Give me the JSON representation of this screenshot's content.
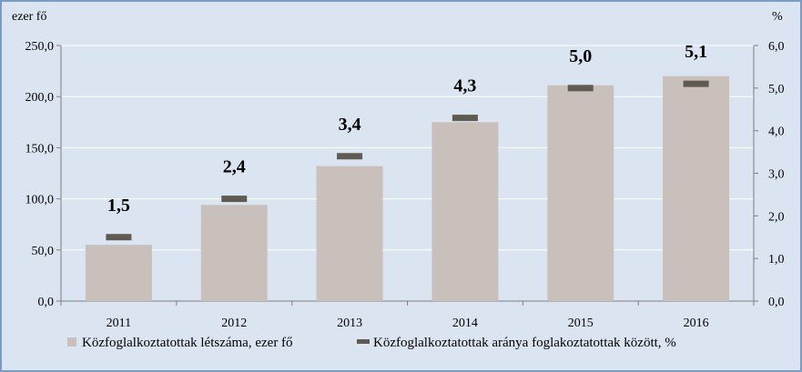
{
  "chart_data": {
    "type": "bar",
    "categories": [
      "2011",
      "2012",
      "2013",
      "2014",
      "2015",
      "2016"
    ],
    "series": [
      {
        "name": "Közfoglalkoztatottak létszáma, ezer fő",
        "kind": "bar",
        "axis": "left",
        "color": "#c9c0bb",
        "values": [
          55.0,
          94.0,
          132.0,
          175.0,
          211.0,
          220.0
        ]
      },
      {
        "name": "Közfoglalkoztatottak aránya foglakoztatottak között, %",
        "kind": "marker",
        "axis": "right",
        "color": "#5f5b50",
        "values": [
          1.5,
          2.4,
          3.4,
          4.3,
          5.0,
          5.1
        ],
        "labels": [
          "1,5",
          "2,4",
          "3,4",
          "4,3",
          "5,0",
          "5,1"
        ]
      }
    ],
    "y_left": {
      "unit": "ezer fő",
      "ylim": [
        0,
        250
      ],
      "ticks": [
        "0,0",
        "50,0",
        "100,0",
        "150,0",
        "200,0",
        "250,0"
      ]
    },
    "y_right": {
      "unit": "%",
      "ylim": [
        0,
        6
      ],
      "ticks": [
        "0,0",
        "1,0",
        "2,0",
        "3,0",
        "4,0",
        "5,0",
        "6,0"
      ]
    },
    "grid": "horizontal",
    "legend_position": "bottom",
    "colors": {
      "background": "#dbe5f1",
      "border": "#7a9cc4",
      "grid": "#ffffff"
    }
  }
}
